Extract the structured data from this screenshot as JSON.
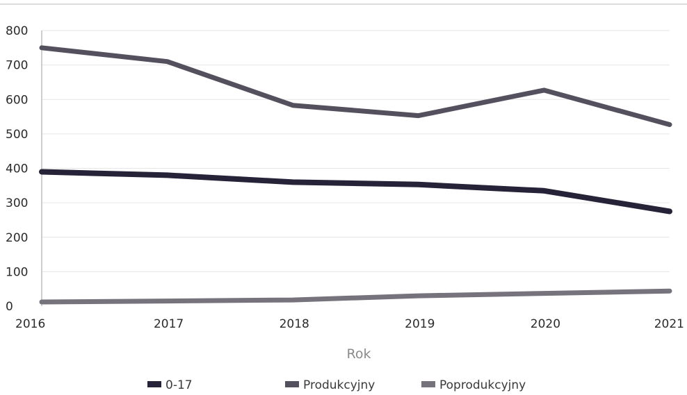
{
  "chart_data": {
    "type": "line",
    "title": "",
    "xlabel": "Rok",
    "ylabel": "",
    "x": [
      "2016",
      "2017",
      "2018",
      "2019",
      "2020",
      "2021"
    ],
    "ylim": [
      0,
      800
    ],
    "yticks": [
      0,
      100,
      200,
      300,
      400,
      500,
      600,
      700,
      800
    ],
    "grid": true,
    "legend_position": "bottom",
    "series": [
      {
        "name": "0-17",
        "values": [
          390,
          380,
          360,
          353,
          335,
          275
        ],
        "color": "#262238"
      },
      {
        "name": "Produkcyjny",
        "values": [
          750,
          710,
          583,
          553,
          627,
          527
        ],
        "color": "#54505e"
      },
      {
        "name": "Poprodukcyjny",
        "values": [
          12,
          15,
          18,
          30,
          37,
          44
        ],
        "color": "#76737d"
      }
    ]
  }
}
